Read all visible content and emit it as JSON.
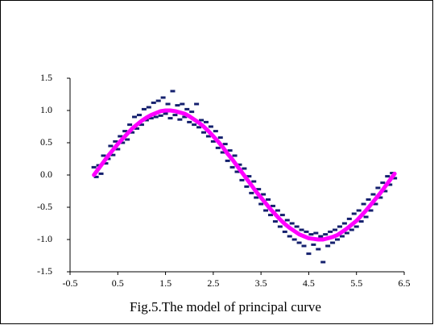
{
  "chart_data": {
    "type": "scatter",
    "caption": "Fig.5.The model of principal curve",
    "xlim": [
      -0.5,
      6.5
    ],
    "xticks": [
      -0.5,
      0.5,
      1.5,
      2.5,
      3.5,
      4.5,
      5.5,
      6.5
    ],
    "ylim": [
      -1.5,
      1.5
    ],
    "yticks": [
      1.5,
      {
        "value": 1,
        "label": "1.0"
      },
      0.5,
      {
        "value": 0,
        "label": "0.0"
      },
      -0.5,
      {
        "value": -1,
        "label": "-1.0"
      },
      -1.5
    ],
    "grid": false,
    "series": [
      {
        "type": "scatter",
        "color": "#14206e",
        "x": [
          0,
          0.05,
          0.1,
          0.15,
          0.2,
          0.25,
          0.3,
          0.35,
          0.4,
          0.45,
          0.5,
          0.55,
          0.6,
          0.65,
          0.7,
          0.75,
          0.8,
          0.85,
          0.9,
          0.95,
          1,
          1.05,
          1.1,
          1.15,
          1.2,
          1.25,
          1.3,
          1.35,
          1.4,
          1.45,
          1.5,
          1.55,
          1.6,
          1.65,
          1.7,
          1.75,
          1.8,
          1.85,
          1.9,
          1.95,
          2,
          2.05,
          2.1,
          2.15,
          2.2,
          2.25,
          2.3,
          2.35,
          2.4,
          2.45,
          2.5,
          2.55,
          2.6,
          2.65,
          2.7,
          2.75,
          2.8,
          2.85,
          2.9,
          2.95,
          3,
          3.05,
          3.1,
          3.15,
          3.2,
          3.25,
          3.3,
          3.35,
          3.4,
          3.45,
          3.5,
          3.55,
          3.6,
          3.65,
          3.7,
          3.75,
          3.8,
          3.85,
          3.9,
          3.95,
          4,
          4.05,
          4.1,
          4.15,
          4.2,
          4.25,
          4.3,
          4.35,
          4.4,
          4.45,
          4.5,
          4.55,
          4.6,
          4.65,
          4.7,
          4.75,
          4.8,
          4.85,
          4.9,
          4.95,
          5,
          5.05,
          5.1,
          5.15,
          5.2,
          5.25,
          5.3,
          5.35,
          5.4,
          5.45,
          5.5,
          5.55,
          5.6,
          5.65,
          5.7,
          5.75,
          5.8,
          5.85,
          5.9,
          5.95,
          6,
          6.05,
          6.1,
          6.15,
          6.2,
          6.25,
          6.3
        ],
        "values": [
          0.12,
          -0.03,
          0.15,
          0.02,
          0.3,
          0.18,
          0.25,
          0.45,
          0.31,
          0.52,
          0.4,
          0.6,
          0.5,
          0.68,
          0.55,
          0.78,
          0.66,
          0.9,
          0.72,
          0.93,
          0.78,
          1.02,
          0.85,
          1.05,
          0.88,
          1.12,
          0.9,
          1.15,
          0.92,
          1.2,
          0.95,
          1.1,
          0.88,
          1.3,
          0.93,
          1.08,
          0.86,
          1.1,
          0.9,
          1.02,
          0.82,
          0.98,
          0.78,
          1.1,
          0.74,
          0.85,
          0.66,
          0.82,
          0.6,
          0.75,
          0.52,
          0.68,
          0.42,
          0.58,
          0.35,
          0.48,
          0.22,
          0.38,
          0.12,
          0.3,
          0.05,
          0.16,
          -0.08,
          0.1,
          -0.18,
          -0.02,
          -0.28,
          -0.1,
          -0.35,
          -0.22,
          -0.45,
          -0.3,
          -0.55,
          -0.38,
          -0.62,
          -0.48,
          -0.72,
          -0.55,
          -0.8,
          -0.62,
          -0.88,
          -0.7,
          -0.95,
          -0.75,
          -1,
          -0.8,
          -1.05,
          -0.85,
          -1.1,
          -0.88,
          -1.22,
          -0.92,
          -1.08,
          -0.9,
          -1.15,
          -0.95,
          -1.35,
          -0.92,
          -1.1,
          -0.88,
          -1.05,
          -0.85,
          -1,
          -0.8,
          -0.95,
          -0.75,
          -0.9,
          -0.68,
          -0.85,
          -0.6,
          -0.8,
          -0.55,
          -0.72,
          -0.45,
          -0.65,
          -0.38,
          -0.55,
          -0.3,
          -0.45,
          -0.2,
          -0.35,
          -0.12,
          -0.25,
          -0.02,
          -0.15,
          0.03,
          -0.05
        ]
      },
      {
        "type": "line",
        "color": "#ff00ff",
        "x": [
          0,
          0.1,
          0.2,
          0.3,
          0.4,
          0.5,
          0.6,
          0.7,
          0.8,
          0.9,
          1,
          1.1,
          1.2,
          1.3,
          1.4,
          1.5,
          1.6,
          1.7,
          1.8,
          1.9,
          2,
          2.1,
          2.2,
          2.3,
          2.4,
          2.5,
          2.6,
          2.7,
          2.8,
          2.9,
          3,
          3.1,
          3.2,
          3.3,
          3.4,
          3.5,
          3.6,
          3.7,
          3.8,
          3.9,
          4,
          4.1,
          4.2,
          4.3,
          4.4,
          4.5,
          4.6,
          4.7,
          4.8,
          4.9,
          5,
          5.1,
          5.2,
          5.3,
          5.4,
          5.5,
          5.6,
          5.7,
          5.8,
          5.9,
          6,
          6.1,
          6.2,
          6.3
        ],
        "values": [
          0,
          0.1,
          0.2,
          0.3,
          0.39,
          0.48,
          0.56,
          0.64,
          0.72,
          0.78,
          0.84,
          0.89,
          0.93,
          0.96,
          0.99,
          1,
          1,
          0.99,
          0.97,
          0.95,
          0.91,
          0.86,
          0.81,
          0.75,
          0.68,
          0.6,
          0.52,
          0.43,
          0.33,
          0.24,
          0.14,
          0.04,
          -0.06,
          -0.16,
          -0.26,
          -0.35,
          -0.44,
          -0.53,
          -0.61,
          -0.69,
          -0.76,
          -0.82,
          -0.87,
          -0.92,
          -0.95,
          -0.98,
          -0.99,
          -1,
          -1,
          -0.98,
          -0.96,
          -0.93,
          -0.88,
          -0.83,
          -0.77,
          -0.71,
          -0.63,
          -0.55,
          -0.46,
          -0.37,
          -0.28,
          -0.18,
          -0.08,
          0.02
        ]
      }
    ]
  }
}
